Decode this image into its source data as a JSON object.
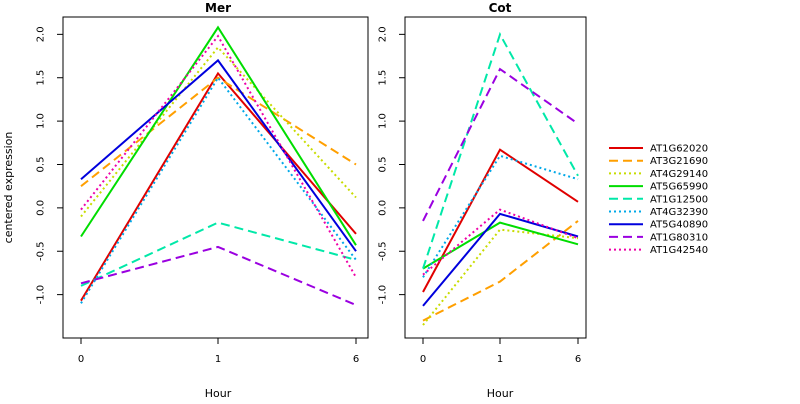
{
  "chart_data": [
    {
      "type": "line",
      "title": "Mer",
      "xlabel": "Hour",
      "ylabel": "centered expression",
      "x": [
        "0",
        "1",
        "6"
      ],
      "ylim": [
        -1.5,
        2.2
      ],
      "yticks": [
        "-1.0",
        "-0.5",
        "0.0",
        "0.5",
        "1.0",
        "1.5",
        "2.0"
      ],
      "grid": false,
      "series": [
        {
          "name": "AT1G62020",
          "values": [
            -1.07,
            1.55,
            -0.3
          ],
          "color": "#e00000",
          "dash": "solid"
        },
        {
          "name": "AT3G21690",
          "values": [
            0.25,
            1.5,
            0.5
          ],
          "color": "#ff9f00",
          "dash": "long"
        },
        {
          "name": "AT4G29140",
          "values": [
            -0.1,
            1.85,
            0.12
          ],
          "color": "#c8dc00",
          "dash": "dot"
        },
        {
          "name": "AT5G65990",
          "values": [
            -0.33,
            2.08,
            -0.43
          ],
          "color": "#00dd00",
          "dash": "solid"
        },
        {
          "name": "AT1G12500",
          "values": [
            -0.9,
            -0.17,
            -0.6
          ],
          "color": "#00e8a8",
          "dash": "long"
        },
        {
          "name": "AT4G32390",
          "values": [
            -1.1,
            1.5,
            -0.6
          ],
          "color": "#00a8e8",
          "dash": "dot"
        },
        {
          "name": "AT5G40890",
          "values": [
            0.33,
            1.7,
            -0.5
          ],
          "color": "#0000dd",
          "dash": "solid"
        },
        {
          "name": "AT1G80310",
          "values": [
            -0.87,
            -0.45,
            -1.12
          ],
          "color": "#9a00e0",
          "dash": "long"
        },
        {
          "name": "AT1G42540",
          "values": [
            -0.02,
            1.98,
            -0.8
          ],
          "color": "#ee00a8",
          "dash": "dot"
        }
      ]
    },
    {
      "type": "line",
      "title": "Cot",
      "xlabel": "Hour",
      "ylabel": "",
      "x": [
        "0",
        "1",
        "6"
      ],
      "ylim": [
        -1.5,
        2.2
      ],
      "yticks": [
        "-1.0",
        "-0.5",
        "0.0",
        "0.5",
        "1.0",
        "1.5",
        "2.0"
      ],
      "grid": false,
      "series": [
        {
          "name": "AT1G62020",
          "values": [
            -0.97,
            0.67,
            0.07
          ],
          "color": "#e00000",
          "dash": "solid"
        },
        {
          "name": "AT3G21690",
          "values": [
            -1.3,
            -0.85,
            -0.15
          ],
          "color": "#ff9f00",
          "dash": "long"
        },
        {
          "name": "AT4G29140",
          "values": [
            -1.35,
            -0.25,
            -0.35
          ],
          "color": "#c8dc00",
          "dash": "dot"
        },
        {
          "name": "AT5G65990",
          "values": [
            -0.7,
            -0.17,
            -0.42
          ],
          "color": "#00dd00",
          "dash": "solid"
        },
        {
          "name": "AT1G12500",
          "values": [
            -0.7,
            2.0,
            0.37
          ],
          "color": "#00e8a8",
          "dash": "long"
        },
        {
          "name": "AT4G32390",
          "values": [
            -0.8,
            0.6,
            0.33
          ],
          "color": "#00a8e8",
          "dash": "dot"
        },
        {
          "name": "AT5G40890",
          "values": [
            -1.13,
            -0.07,
            -0.33
          ],
          "color": "#0000dd",
          "dash": "solid"
        },
        {
          "name": "AT1G80310",
          "values": [
            -0.15,
            1.6,
            0.97
          ],
          "color": "#9a00e0",
          "dash": "long"
        },
        {
          "name": "AT1G42540",
          "values": [
            -0.77,
            -0.02,
            -0.35
          ],
          "color": "#ee00a8",
          "dash": "dot"
        }
      ]
    }
  ],
  "legend": {
    "placement": "right",
    "entries": [
      {
        "label": "AT1G62020",
        "color": "#e00000",
        "dash": "solid"
      },
      {
        "label": "AT3G21690",
        "color": "#ff9f00",
        "dash": "long"
      },
      {
        "label": "AT4G29140",
        "color": "#c8dc00",
        "dash": "dot"
      },
      {
        "label": "AT5G65990",
        "color": "#00dd00",
        "dash": "solid"
      },
      {
        "label": "AT1G12500",
        "color": "#00e8a8",
        "dash": "long"
      },
      {
        "label": "AT4G32390",
        "color": "#00a8e8",
        "dash": "dot"
      },
      {
        "label": "AT5G40890",
        "color": "#0000dd",
        "dash": "solid"
      },
      {
        "label": "AT1G80310",
        "color": "#9a00e0",
        "dash": "long"
      },
      {
        "label": "AT1G42540",
        "color": "#ee00a8",
        "dash": "dot"
      }
    ]
  }
}
